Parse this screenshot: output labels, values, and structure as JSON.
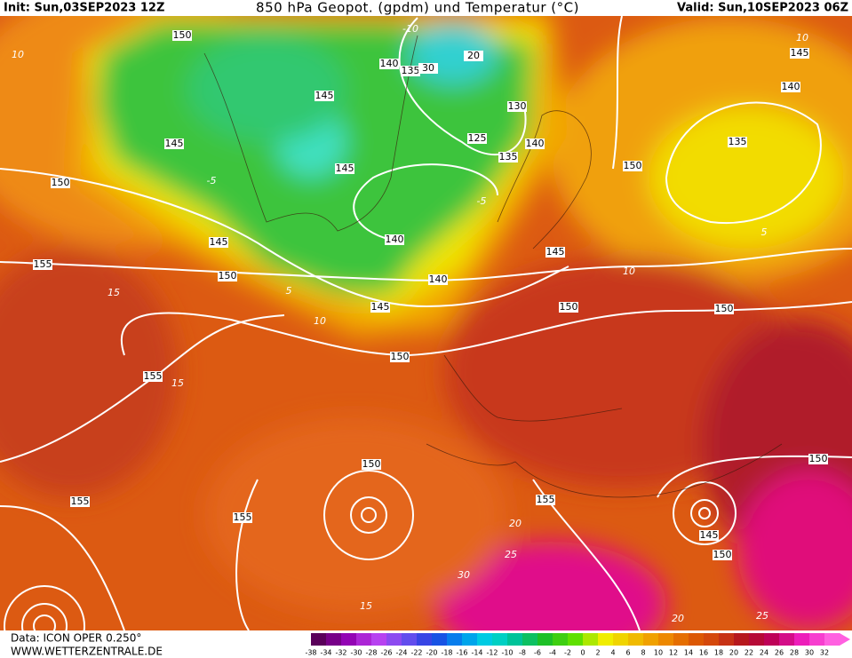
{
  "header": {
    "init": "Init: Sun,03SEP2023 12Z",
    "title": "850 hPa Geopot. (gpdm) und Temperatur (°C)",
    "valid": "Valid: Sun,10SEP2023 06Z"
  },
  "footer": {
    "data": "Data: ICON OPER 0.250°",
    "website": "WWW.WETTERZENTRALE.DE"
  },
  "colorbar": {
    "labels": [
      -38,
      -34,
      -32,
      -30,
      -28,
      -26,
      -24,
      -22,
      -20,
      -18,
      -16,
      -14,
      -12,
      -10,
      -8,
      -6,
      -4,
      -2,
      0,
      2,
      4,
      6,
      8,
      10,
      12,
      14,
      16,
      18,
      20,
      22,
      24,
      26,
      28,
      30,
      32
    ]
  },
  "map": {
    "geopotential_labels": [
      "150",
      "140",
      "135",
      "30",
      "20",
      "145",
      "130",
      "125",
      "145",
      "145",
      "140",
      "135",
      "150",
      "145",
      "140",
      "135",
      "150",
      "145",
      "140",
      "145",
      "155",
      "150",
      "140",
      "145",
      "150",
      "150",
      "150",
      "155",
      "150",
      "155",
      "155",
      "155",
      "150",
      "145",
      "150"
    ],
    "temperature_labels": [
      "10",
      "-10",
      "-5",
      "-5",
      "5",
      "10",
      "15",
      "15",
      "10",
      "5",
      "10",
      "15",
      "20",
      "25",
      "20",
      "25",
      "30"
    ]
  }
}
